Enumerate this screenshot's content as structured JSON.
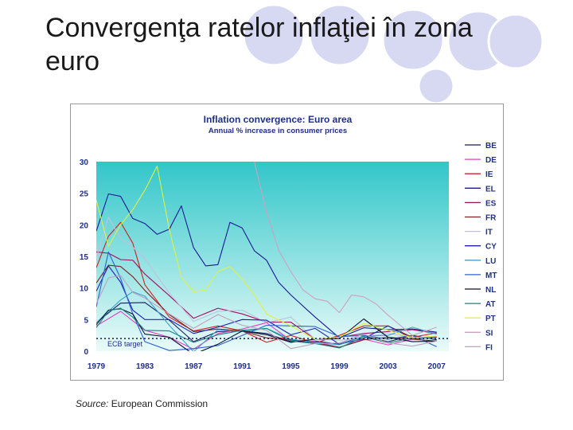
{
  "slide": {
    "title": "Convergenţa ratelor inflaţiei în zona euro",
    "source_label": "Source:",
    "source_text": " European Commission"
  },
  "colors": {
    "circle_fill": "#d7d9f2",
    "circle_stroke": "#ffffff",
    "plot_top": "#31c6c9",
    "plot_bottom": "#e9fbf9"
  },
  "chart_data": {
    "type": "line",
    "title": "Inflation convergence: Euro area",
    "subtitle": "Annual % increase in consumer prices",
    "xlabel": "",
    "ylabel": "",
    "xlim": [
      1979,
      2008
    ],
    "ylim": [
      0,
      30
    ],
    "x_ticks": [
      "1979",
      "1983",
      "1987",
      "1991",
      "1995",
      "1999",
      "2003",
      "2007"
    ],
    "y_ticks": [
      "0",
      "5",
      "10",
      "15",
      "20",
      "25",
      "30"
    ],
    "grid": false,
    "legend": "right",
    "reference_line": {
      "label": "ECB target",
      "value": 2
    },
    "series": [
      {
        "name": "BE",
        "color": "#1a1a60",
        "x": [
          1979,
          1981,
          1983,
          1985,
          1987,
          1989,
          1991,
          1993,
          1995,
          1997,
          1999,
          2001,
          2003,
          2005,
          2007
        ],
        "values": [
          4.5,
          7.6,
          7.7,
          4.9,
          1.5,
          3.1,
          3.2,
          2.8,
          1.5,
          1.6,
          1.1,
          2.4,
          1.5,
          2.5,
          1.8
        ]
      },
      {
        "name": "DE",
        "color": "#e040c0",
        "x": [
          1979,
          1981,
          1983,
          1985,
          1987,
          1989,
          1991,
          1993,
          1995,
          1997,
          1999,
          2001,
          2003,
          2005,
          2007
        ],
        "values": [
          4.0,
          6.3,
          3.3,
          2.2,
          0.3,
          2.8,
          3.5,
          4.5,
          1.7,
          1.5,
          0.6,
          1.9,
          1.0,
          1.9,
          2.3
        ]
      },
      {
        "name": "IE",
        "color": "#d02020",
        "x": [
          1979,
          1980,
          1981,
          1982,
          1983,
          1985,
          1987,
          1989,
          1991,
          1993,
          1995,
          1997,
          1999,
          2001,
          2003,
          2005,
          2007
        ],
        "values": [
          13.2,
          18.2,
          20.4,
          17.1,
          10.5,
          5.4,
          3.2,
          4.0,
          3.2,
          1.4,
          2.5,
          1.3,
          2.5,
          4.0,
          4.0,
          2.2,
          2.9
        ]
      },
      {
        "name": "EL",
        "color": "#1a1a90",
        "x": [
          1979,
          1980,
          1981,
          1982,
          1983,
          1984,
          1985,
          1986,
          1987,
          1988,
          1989,
          1990,
          1991,
          1992,
          1993,
          1994,
          1995,
          1997,
          1999,
          2001,
          2003,
          2005,
          2007
        ],
        "values": [
          19.0,
          24.9,
          24.5,
          21.0,
          20.2,
          18.5,
          19.3,
          23.0,
          16.4,
          13.5,
          13.7,
          20.4,
          19.5,
          15.9,
          14.4,
          10.9,
          8.9,
          5.4,
          2.1,
          3.7,
          3.4,
          3.5,
          3.0
        ]
      },
      {
        "name": "ES",
        "color": "#a01060",
        "x": [
          1979,
          1980,
          1981,
          1982,
          1983,
          1985,
          1987,
          1989,
          1991,
          1993,
          1995,
          1997,
          1999,
          2001,
          2003,
          2005,
          2007
        ],
        "values": [
          15.7,
          15.5,
          14.5,
          14.4,
          12.2,
          8.8,
          5.2,
          6.8,
          5.9,
          4.6,
          4.6,
          1.9,
          2.2,
          2.8,
          3.1,
          3.4,
          2.8
        ]
      },
      {
        "name": "FR",
        "color": "#802020",
        "x": [
          1979,
          1980,
          1981,
          1982,
          1983,
          1985,
          1987,
          1989,
          1991,
          1993,
          1995,
          1997,
          1999,
          2001,
          2003,
          2005,
          2007
        ],
        "values": [
          10.8,
          13.6,
          13.4,
          11.8,
          9.6,
          5.8,
          3.1,
          3.5,
          3.2,
          2.1,
          1.8,
          1.3,
          0.6,
          1.8,
          2.2,
          1.9,
          1.6
        ]
      },
      {
        "name": "IT",
        "color": "#c0c0e0",
        "x": [
          1979,
          1980,
          1981,
          1982,
          1983,
          1985,
          1987,
          1989,
          1991,
          1993,
          1995,
          1997,
          1999,
          2001,
          2003,
          2005,
          2007
        ],
        "values": [
          14.8,
          21.2,
          17.8,
          16.5,
          14.6,
          9.2,
          4.7,
          6.3,
          6.5,
          4.5,
          5.4,
          1.9,
          1.7,
          2.3,
          2.8,
          2.2,
          2.0
        ]
      },
      {
        "name": "CY",
        "color": "#2020b0",
        "x": [
          1979,
          1980,
          1981,
          1982,
          1983,
          1985,
          1987,
          1989,
          1991,
          1993,
          1995,
          1997,
          1999,
          2001,
          2003,
          2005,
          2007
        ],
        "values": [
          9.5,
          13.5,
          10.9,
          6.5,
          5.0,
          5.0,
          2.8,
          3.8,
          5.0,
          4.9,
          2.6,
          3.6,
          1.1,
          2.0,
          4.0,
          2.0,
          2.2
        ]
      },
      {
        "name": "LU",
        "color": "#40a0d0",
        "x": [
          1979,
          1980,
          1981,
          1982,
          1983,
          1985,
          1987,
          1989,
          1991,
          1993,
          1995,
          1997,
          1999,
          2001,
          2003,
          2005,
          2007
        ],
        "values": [
          4.5,
          6.3,
          8.1,
          9.4,
          8.7,
          4.1,
          -0.1,
          3.4,
          3.1,
          3.6,
          1.9,
          1.4,
          1.0,
          2.4,
          2.5,
          3.8,
          2.7
        ]
      },
      {
        "name": "MT",
        "color": "#3060d0",
        "x": [
          1979,
          1980,
          1981,
          1982,
          1983,
          1985,
          1987,
          1989,
          1991,
          1993,
          1995,
          1997,
          1999,
          2001,
          2003,
          2005,
          2007
        ],
        "values": [
          7.0,
          15.7,
          11.5,
          5.9,
          1.5,
          0.1,
          0.4,
          0.9,
          2.5,
          4.1,
          4.0,
          3.9,
          2.3,
          2.5,
          1.9,
          2.5,
          0.7
        ]
      },
      {
        "name": "NL",
        "color": "#101030",
        "x": [
          1979,
          1980,
          1981,
          1982,
          1983,
          1985,
          1987,
          1989,
          1991,
          1993,
          1995,
          1997,
          1999,
          2001,
          2003,
          2005,
          2007
        ],
        "values": [
          4.2,
          6.5,
          6.7,
          5.9,
          2.7,
          2.2,
          -0.5,
          1.1,
          3.2,
          2.6,
          1.4,
          1.9,
          2.0,
          5.1,
          2.2,
          1.5,
          1.6
        ]
      },
      {
        "name": "AT",
        "color": "#208080",
        "x": [
          1979,
          1980,
          1981,
          1982,
          1983,
          1985,
          1987,
          1989,
          1991,
          1993,
          1995,
          1997,
          1999,
          2001,
          2003,
          2005,
          2007
        ],
        "values": [
          3.7,
          6.4,
          6.8,
          5.4,
          3.3,
          3.2,
          1.4,
          2.6,
          3.3,
          3.6,
          1.6,
          1.2,
          0.5,
          2.3,
          1.3,
          2.1,
          2.2
        ]
      },
      {
        "name": "PT",
        "color": "#e0f040",
        "x": [
          1979,
          1980,
          1981,
          1982,
          1983,
          1984,
          1985,
          1986,
          1987,
          1988,
          1989,
          1990,
          1991,
          1992,
          1993,
          1995,
          1997,
          1999,
          2001,
          2003,
          2005,
          2007
        ],
        "values": [
          23.9,
          16.6,
          20.0,
          22.4,
          25.5,
          29.3,
          19.3,
          11.7,
          9.4,
          9.7,
          12.6,
          13.4,
          11.4,
          8.9,
          5.9,
          4.0,
          1.9,
          2.2,
          4.4,
          3.3,
          2.1,
          2.4
        ]
      },
      {
        "name": "SI",
        "color": "#d0a0c0",
        "x": [
          1992,
          1993,
          1994,
          1995,
          1996,
          1997,
          1998,
          1999,
          2000,
          2001,
          2002,
          2003,
          2005,
          2007
        ],
        "values": [
          30.0,
          22.0,
          16.0,
          12.6,
          9.7,
          8.3,
          7.9,
          6.1,
          8.9,
          8.6,
          7.5,
          5.7,
          2.5,
          3.8
        ]
      },
      {
        "name": "FI",
        "color": "#c0a0c0",
        "x": [
          1979,
          1980,
          1981,
          1982,
          1983,
          1985,
          1987,
          1989,
          1991,
          1993,
          1995,
          1997,
          1999,
          2001,
          2003,
          2005,
          2007
        ],
        "values": [
          7.5,
          11.6,
          12.0,
          9.3,
          8.4,
          5.9,
          3.6,
          5.8,
          4.1,
          3.3,
          0.4,
          1.2,
          1.3,
          2.7,
          1.3,
          0.8,
          1.6
        ]
      }
    ]
  }
}
